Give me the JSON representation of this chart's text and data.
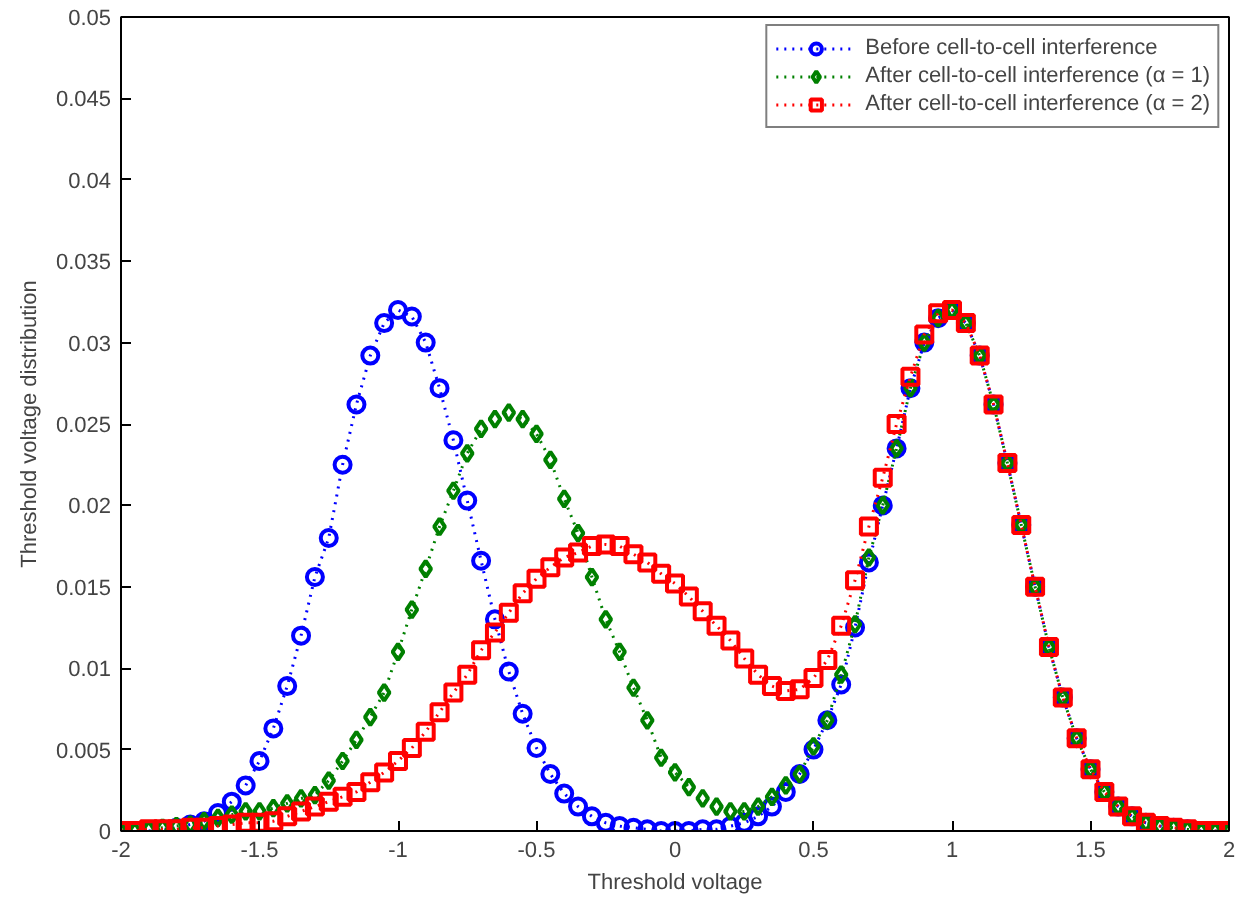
{
  "chart_data": {
    "type": "line",
    "xlabel": "Threshold voltage",
    "ylabel": "Threshold voltage distribution",
    "x": [
      -2,
      -1.95,
      -1.9,
      -1.85,
      -1.8,
      -1.75,
      -1.7,
      -1.65,
      -1.6,
      -1.55,
      -1.5,
      -1.45,
      -1.4,
      -1.35,
      -1.3,
      -1.25,
      -1.2,
      -1.15,
      -1.1,
      -1.05,
      -1,
      -0.95,
      -0.9,
      -0.85,
      -0.8,
      -0.75,
      -0.7,
      -0.65,
      -0.6,
      -0.55,
      -0.5,
      -0.45,
      -0.4,
      -0.35,
      -0.3,
      -0.25,
      -0.2,
      -0.15,
      -0.1,
      -0.05,
      0,
      0.05,
      0.1,
      0.15,
      0.2,
      0.25,
      0.3,
      0.35,
      0.4,
      0.45,
      0.5,
      0.55,
      0.6,
      0.65,
      0.7,
      0.75,
      0.8,
      0.85,
      0.9,
      0.95,
      1,
      1.05,
      1.1,
      1.15,
      1.2,
      1.25,
      1.3,
      1.35,
      1.4,
      1.45,
      1.5,
      1.55,
      1.6,
      1.65,
      1.7,
      1.75,
      1.8,
      1.85,
      1.9,
      1.95,
      2
    ],
    "series": [
      {
        "name": "Before cell-to-cell interference",
        "color": "#0000ff",
        "marker": "circle",
        "values": [
          null,
          null,
          0,
          0.0001,
          0.0002,
          0.0004,
          0.0006,
          0.0011,
          0.0018,
          0.0028,
          0.0043,
          0.0063,
          0.0089,
          0.012,
          0.0156,
          0.018,
          0.0225,
          0.0262,
          0.0292,
          0.0312,
          0.032,
          0.0316,
          0.03,
          0.0272,
          0.024,
          0.0203,
          0.0166,
          0.013,
          0.0098,
          0.0072,
          0.0051,
          0.0035,
          0.0023,
          0.0015,
          0.0009,
          0.0005,
          0.0003,
          0.0002,
          0.0001,
          0,
          0,
          0,
          0.0001,
          0.0001,
          0.0003,
          0.0005,
          0.0009,
          0.0015,
          0.0024,
          0.0035,
          0.005,
          0.0068,
          0.009,
          0.0125,
          0.0165,
          0.02,
          0.0235,
          0.0272,
          0.03,
          0.0315,
          0.032,
          0.0312,
          0.0292,
          0.0262,
          0.0226,
          0.0188,
          0.015,
          0.0113,
          0.0082,
          0.0057,
          0.0038,
          0.0024,
          0.0015,
          0.0009,
          0.0005,
          0.0003,
          0.0002,
          0.0001,
          0,
          0,
          0
        ]
      },
      {
        "name": "After cell-to-cell interference (α = 1)",
        "color": "#008000",
        "marker": "diamond",
        "values": [
          0,
          0,
          0.0001,
          0.0002,
          0.0003,
          0.0004,
          0.0006,
          0.0008,
          0.001,
          0.0012,
          0.0012,
          0.0014,
          0.0017,
          0.002,
          0.0022,
          0.0031,
          0.0043,
          0.0056,
          0.007,
          0.0085,
          0.011,
          0.0136,
          0.0161,
          0.0187,
          0.0209,
          0.0232,
          0.0247,
          0.0253,
          0.0257,
          0.0253,
          0.0244,
          0.0228,
          0.0204,
          0.0183,
          0.0156,
          0.013,
          0.011,
          0.0088,
          0.0068,
          0.0045,
          0.0036,
          0.0027,
          0.002,
          0.0015,
          0.0012,
          0.0012,
          0.0015,
          0.0021,
          0.0028,
          0.0035,
          0.0052,
          0.0068,
          0.0096,
          0.0127,
          0.0168,
          0.02,
          0.0235,
          0.0272,
          0.03,
          0.0315,
          0.032,
          0.0312,
          0.0292,
          0.0262,
          0.0226,
          0.0188,
          0.015,
          0.0113,
          0.0082,
          0.0057,
          0.0038,
          0.0024,
          0.0015,
          0.0009,
          0.0005,
          0.0003,
          0.0002,
          0.0001,
          0,
          0,
          0
        ]
      },
      {
        "name": "After cell-to-cell interference (α = 2)",
        "color": "#ff0000",
        "marker": "square",
        "values": [
          0,
          0,
          0.0001,
          0.0001,
          0.0001,
          0.0002,
          0.0002,
          0.0003,
          0.0004,
          0.0005,
          0.0005,
          0.0006,
          0.0009,
          0.0012,
          0.0015,
          0.0018,
          0.0021,
          0.0024,
          0.003,
          0.0036,
          0.0043,
          0.0051,
          0.0061,
          0.0073,
          0.0085,
          0.0096,
          0.0111,
          0.0122,
          0.0134,
          0.0146,
          0.0155,
          0.0162,
          0.0168,
          0.0171,
          0.0175,
          0.0176,
          0.0175,
          0.017,
          0.0165,
          0.0158,
          0.0152,
          0.0144,
          0.0135,
          0.0126,
          0.0117,
          0.0106,
          0.0096,
          0.0089,
          0.0086,
          0.0087,
          0.0094,
          0.0105,
          0.0126,
          0.0154,
          0.0187,
          0.0217,
          0.025,
          0.0279,
          0.0305,
          0.0318,
          0.032,
          0.0312,
          0.0292,
          0.0262,
          0.0226,
          0.0188,
          0.015,
          0.0113,
          0.0082,
          0.0057,
          0.0038,
          0.0024,
          0.0015,
          0.0009,
          0.0005,
          0.0003,
          0.0002,
          0.0001,
          0,
          0,
          0
        ]
      }
    ],
    "line_style": "dotted",
    "legend": "top right",
    "grid": false,
    "xlim": [
      -2,
      2
    ],
    "xticks": [
      -2,
      -1.5,
      -1,
      -0.5,
      0,
      0.5,
      1,
      1.5,
      2
    ],
    "ylim": [
      0,
      0.05
    ],
    "yticks": [
      0,
      0.005,
      0.01,
      0.015,
      0.02,
      0.025,
      0.03,
      0.035,
      0.04,
      0.045,
      0.05
    ]
  }
}
